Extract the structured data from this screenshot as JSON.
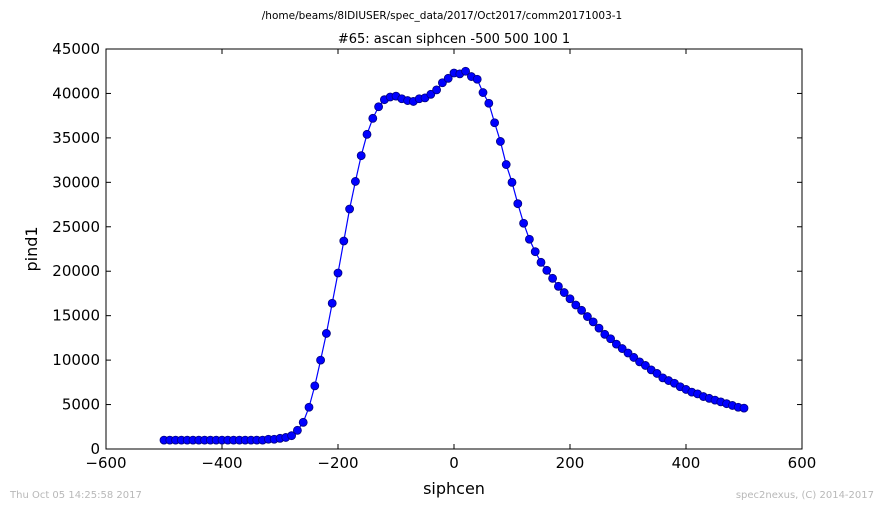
{
  "suptitle": "/home/beams/8IDIUSER/spec_data/2017/Oct2017/comm20171003-1",
  "footer": {
    "timestamp": "Thu Oct 05 14:25:58 2017",
    "credit": "spec2nexus, (C) 2014-2017"
  },
  "chart_data": {
    "type": "line",
    "title": "#65: ascan  siphcen -500 500  100 1",
    "xlabel": "siphcen",
    "ylabel": "pind1",
    "xlim": [
      -600,
      600
    ],
    "ylim": [
      0,
      45000
    ],
    "xticks": [
      "−600",
      "−400",
      "−200",
      "0",
      "200",
      "400",
      "600"
    ],
    "yticks": [
      "0",
      "5000",
      "10000",
      "15000",
      "20000",
      "25000",
      "30000",
      "35000",
      "40000",
      "45000"
    ],
    "grid": false,
    "colors": {
      "line": "#0000ff",
      "marker_fill": "#0000ff",
      "marker_edge": "#000080"
    },
    "series": [
      {
        "x": [
          -500,
          -490,
          -480,
          -470,
          -460,
          -450,
          -440,
          -430,
          -420,
          -410,
          -400,
          -390,
          -380,
          -370,
          -360,
          -350,
          -340,
          -330,
          -320,
          -310,
          -300,
          -290,
          -280,
          -270,
          -260,
          -250,
          -240,
          -230,
          -220,
          -210,
          -200,
          -190,
          -180,
          -170,
          -160,
          -150,
          -140,
          -130,
          -120,
          -110,
          -100,
          -90,
          -80,
          -70,
          -60,
          -50,
          -40,
          -30,
          -20,
          -10,
          0,
          10,
          20,
          30,
          40,
          50,
          60,
          70,
          80,
          90,
          100,
          110,
          120,
          130,
          140,
          150,
          160,
          170,
          180,
          190,
          200,
          210,
          220,
          230,
          240,
          250,
          260,
          270,
          280,
          290,
          300,
          310,
          320,
          330,
          340,
          350,
          360,
          370,
          380,
          390,
          400,
          410,
          420,
          430,
          440,
          450,
          460,
          470,
          480,
          490,
          500
        ],
        "y": [
          1000,
          1000,
          1000,
          1000,
          1000,
          1000,
          1000,
          1000,
          1000,
          1000,
          1000,
          1000,
          1000,
          1000,
          1000,
          1000,
          1000,
          1000,
          1100,
          1100,
          1200,
          1300,
          1500,
          2100,
          3000,
          4700,
          7100,
          10000,
          13000,
          16400,
          19800,
          23400,
          27000,
          30100,
          33000,
          35400,
          37200,
          38500,
          39300,
          39600,
          39700,
          39400,
          39200,
          39100,
          39400,
          39500,
          39900,
          40400,
          41200,
          41700,
          42300,
          42200,
          42500,
          41900,
          41600,
          40100,
          38900,
          36700,
          34600,
          32000,
          30000,
          27600,
          25400,
          23600,
          22200,
          21000,
          20100,
          19200,
          18300,
          17600,
          16900,
          16200,
          15600,
          14900,
          14300,
          13600,
          12900,
          12400,
          11800,
          11300,
          10800,
          10300,
          9800,
          9400,
          8900,
          8500,
          8000,
          7700,
          7400,
          7000,
          6700,
          6400,
          6200,
          5900,
          5700,
          5500,
          5300,
          5100,
          4900,
          4700,
          4600
        ]
      }
    ]
  }
}
